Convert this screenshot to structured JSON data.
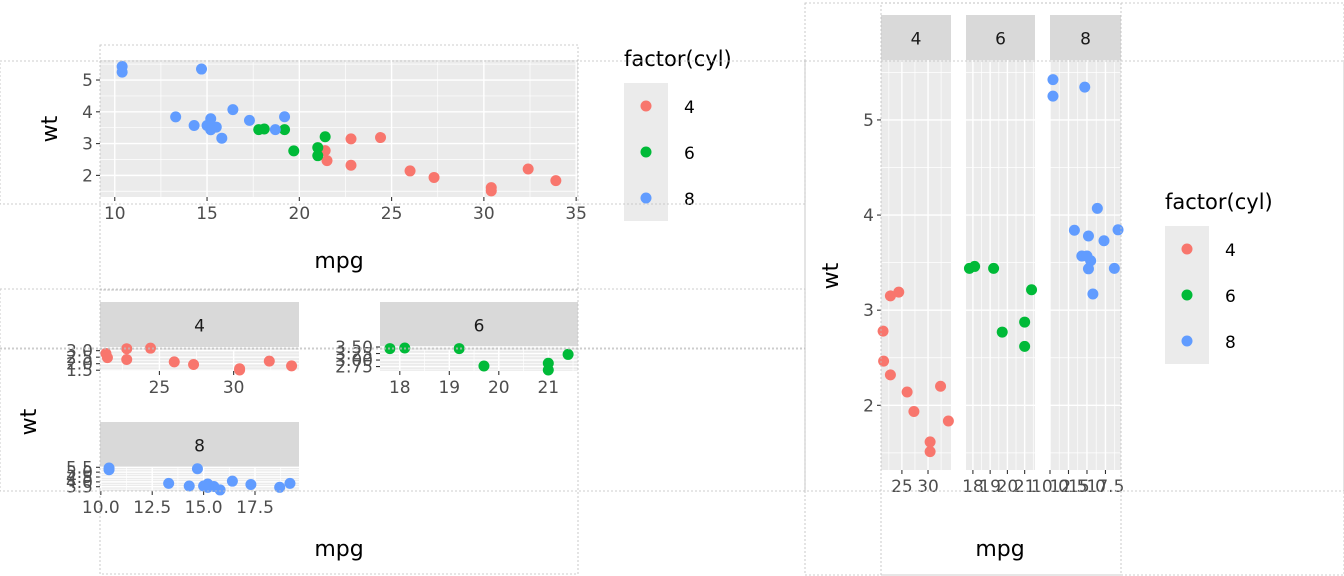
{
  "colors": {
    "panel_bg": "#ebebeb",
    "grid": "#ffffff",
    "strip_bg": "#d9d9d9",
    "text": "#000000",
    "tick_text": "#4d4d4d",
    "guide": "#bdbdbd",
    "series_4": "#F8766D",
    "series_6": "#00BA38",
    "series_8": "#619CFF"
  },
  "chart_data": [
    {
      "id": "top-left",
      "type": "scatter",
      "xlabel": "mpg",
      "ylabel": "wt",
      "xlim": [
        9.2,
        35.1
      ],
      "ylim": [
        1.32,
        5.63
      ],
      "xticks": [
        "10",
        "15",
        "20",
        "25",
        "30",
        "35"
      ],
      "yticks": [
        "2",
        "3",
        "4",
        "5"
      ],
      "legend": {
        "title": "factor(cyl)",
        "placement": "right",
        "entries": [
          "4",
          "6",
          "8"
        ]
      },
      "series": [
        {
          "name": "4",
          "points": [
            [
              22.8,
              2.32
            ],
            [
              24.4,
              3.19
            ],
            [
              22.8,
              3.15
            ],
            [
              32.4,
              2.2
            ],
            [
              30.4,
              1.615
            ],
            [
              33.9,
              1.835
            ],
            [
              21.5,
              2.465
            ],
            [
              27.3,
              1.935
            ],
            [
              26.0,
              2.14
            ],
            [
              30.4,
              1.513
            ],
            [
              21.4,
              2.78
            ]
          ]
        },
        {
          "name": "6",
          "points": [
            [
              21.0,
              2.62
            ],
            [
              21.0,
              2.875
            ],
            [
              21.4,
              3.215
            ],
            [
              18.1,
              3.46
            ],
            [
              19.2,
              3.44
            ],
            [
              17.8,
              3.44
            ],
            [
              19.7,
              2.77
            ]
          ]
        },
        {
          "name": "8",
          "points": [
            [
              18.7,
              3.44
            ],
            [
              14.3,
              3.57
            ],
            [
              16.4,
              4.07
            ],
            [
              17.3,
              3.73
            ],
            [
              15.2,
              3.78
            ],
            [
              10.4,
              5.25
            ],
            [
              10.4,
              5.424
            ],
            [
              14.7,
              5.345
            ],
            [
              15.5,
              3.52
            ],
            [
              15.2,
              3.435
            ],
            [
              13.3,
              3.84
            ],
            [
              19.2,
              3.845
            ],
            [
              15.8,
              3.17
            ],
            [
              15.0,
              3.57
            ]
          ]
        }
      ]
    },
    {
      "id": "bottom-left-4",
      "type": "scatter",
      "strip": "4",
      "xlim": [
        21.0,
        34.4
      ],
      "ylim": [
        1.44,
        3.28
      ],
      "xticks": [
        "25",
        "30"
      ],
      "yticks": [
        "1.5",
        "2.0",
        "2.5",
        "3.0"
      ],
      "series": [
        {
          "name": "4",
          "points": [
            [
              22.8,
              2.32
            ],
            [
              24.4,
              3.19
            ],
            [
              22.8,
              3.15
            ],
            [
              32.4,
              2.2
            ],
            [
              30.4,
              1.615
            ],
            [
              33.9,
              1.835
            ],
            [
              21.5,
              2.465
            ],
            [
              27.3,
              1.935
            ],
            [
              26.0,
              2.14
            ],
            [
              30.4,
              1.513
            ],
            [
              21.4,
              2.78
            ]
          ]
        }
      ]
    },
    {
      "id": "bottom-left-6",
      "type": "scatter",
      "strip": "6",
      "xlim": [
        17.6,
        21.6
      ],
      "ylim": [
        2.58,
        3.5
      ],
      "xticks": [
        "18",
        "19",
        "20",
        "21"
      ],
      "yticks": [
        "2.75",
        "3.00",
        "3.25",
        "3.50"
      ],
      "series": [
        {
          "name": "6",
          "points": [
            [
              21.0,
              2.62
            ],
            [
              21.0,
              2.875
            ],
            [
              21.4,
              3.215
            ],
            [
              18.1,
              3.46
            ],
            [
              19.2,
              3.44
            ],
            [
              17.8,
              3.44
            ],
            [
              19.7,
              2.77
            ]
          ]
        }
      ]
    },
    {
      "id": "bottom-left-8",
      "type": "scatter",
      "strip": "8",
      "xlim": [
        9.96,
        19.64
      ],
      "ylim": [
        3.06,
        5.53
      ],
      "xticks": [
        "10.0",
        "12.5",
        "15.0",
        "17.5"
      ],
      "yticks": [
        "3.5",
        "4.0",
        "4.5",
        "5.0",
        "5.5"
      ],
      "xlabel": "mpg",
      "ylabel": "wt",
      "series": [
        {
          "name": "8",
          "points": [
            [
              18.7,
              3.44
            ],
            [
              14.3,
              3.57
            ],
            [
              16.4,
              4.07
            ],
            [
              17.3,
              3.73
            ],
            [
              15.2,
              3.78
            ],
            [
              10.4,
              5.25
            ],
            [
              10.4,
              5.424
            ],
            [
              14.7,
              5.345
            ],
            [
              15.5,
              3.52
            ],
            [
              15.2,
              3.435
            ],
            [
              13.3,
              3.84
            ],
            [
              19.2,
              3.845
            ],
            [
              15.8,
              3.17
            ],
            [
              15.0,
              3.57
            ]
          ]
        }
      ]
    },
    {
      "id": "right-facet",
      "type": "scatter",
      "strips": [
        "4",
        "6",
        "8"
      ],
      "xlabel": "mpg",
      "ylabel": "wt",
      "ylim": [
        1.32,
        5.63
      ],
      "yticks": [
        "2",
        "3",
        "4",
        "5"
      ],
      "panels": [
        {
          "strip": "4",
          "xlim": [
            21.0,
            34.4
          ],
          "xticks": [
            "25",
            "30"
          ]
        },
        {
          "strip": "6",
          "xlim": [
            17.6,
            21.6
          ],
          "xticks": [
            "18",
            "19",
            "20",
            "21"
          ]
        },
        {
          "strip": "8",
          "xlim": [
            10.0,
            19.6
          ],
          "xticks": [
            "10.0",
            "12.5",
            "15.0",
            "17.5"
          ]
        }
      ],
      "legend": {
        "title": "factor(cyl)",
        "placement": "right",
        "entries": [
          "4",
          "6",
          "8"
        ]
      }
    }
  ]
}
